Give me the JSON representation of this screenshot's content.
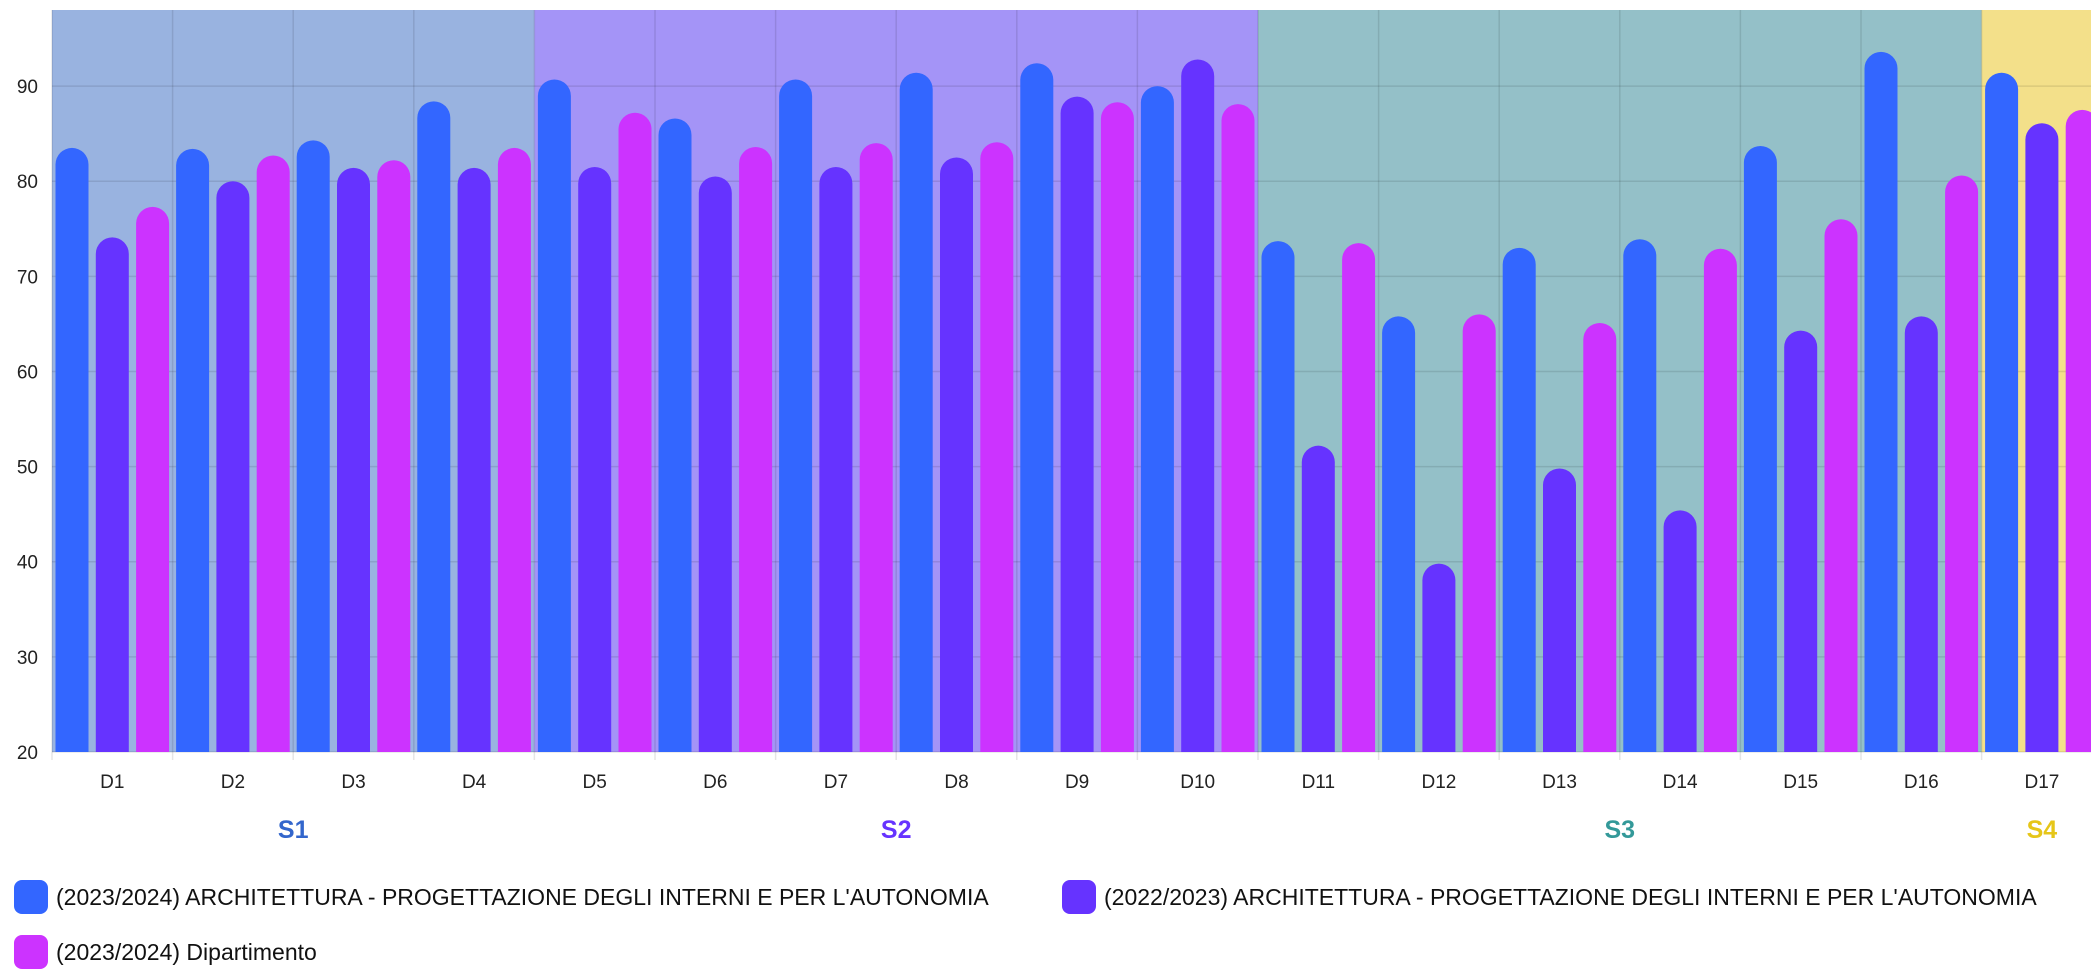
{
  "chart_data": {
    "type": "bar",
    "ylim": [
      20,
      98
    ],
    "yticks": [
      20,
      30,
      40,
      50,
      60,
      70,
      80,
      90
    ],
    "grid": true,
    "legend_position": "bottom",
    "categories": [
      "D1",
      "D2",
      "D3",
      "D4",
      "D5",
      "D6",
      "D7",
      "D8",
      "D9",
      "D10",
      "D11",
      "D12",
      "D13",
      "D14",
      "D15",
      "D16",
      "D17"
    ],
    "series": [
      {
        "name": "(2023/2024) ARCHITETTURA - PROGETTAZIONE DEGLI INTERNI E PER L'AUTONOMIA",
        "color": "#3366ff",
        "values": [
          83.5,
          83.4,
          84.3,
          88.4,
          90.7,
          86.6,
          90.7,
          91.4,
          92.4,
          90.0,
          73.7,
          65.8,
          73.0,
          73.9,
          83.7,
          93.6,
          91.4
        ]
      },
      {
        "name": "(2022/2023) ARCHITETTURA - PROGETTAZIONE DEGLI INTERNI E PER L'AUTONOMIA",
        "color": "#6633ff",
        "values": [
          74.1,
          80.0,
          81.4,
          81.4,
          81.5,
          80.5,
          81.5,
          82.5,
          88.9,
          92.8,
          52.2,
          39.8,
          49.8,
          45.4,
          64.3,
          65.8,
          86.1
        ]
      },
      {
        "name": "(2023/2024) Dipartimento",
        "color": "#cc33ff",
        "values": [
          77.3,
          82.7,
          82.2,
          83.5,
          87.2,
          83.6,
          84.0,
          84.1,
          88.3,
          88.1,
          73.5,
          66.0,
          65.1,
          72.9,
          76.0,
          80.6,
          87.5
        ]
      }
    ],
    "sections": [
      {
        "label": "S1",
        "from": "D1",
        "to": "D4",
        "color": "#3366cc",
        "bg": "#99b3e0"
      },
      {
        "label": "S2",
        "from": "D5",
        "to": "D10",
        "color": "#6633ff",
        "bg": "#a494f7"
      },
      {
        "label": "S3",
        "from": "D11",
        "to": "D16",
        "color": "#339999",
        "bg": "#94c0c8"
      },
      {
        "label": "S4",
        "from": "D17",
        "to": "D17",
        "color": "#e6c619",
        "bg": "#f3e08a"
      }
    ]
  }
}
